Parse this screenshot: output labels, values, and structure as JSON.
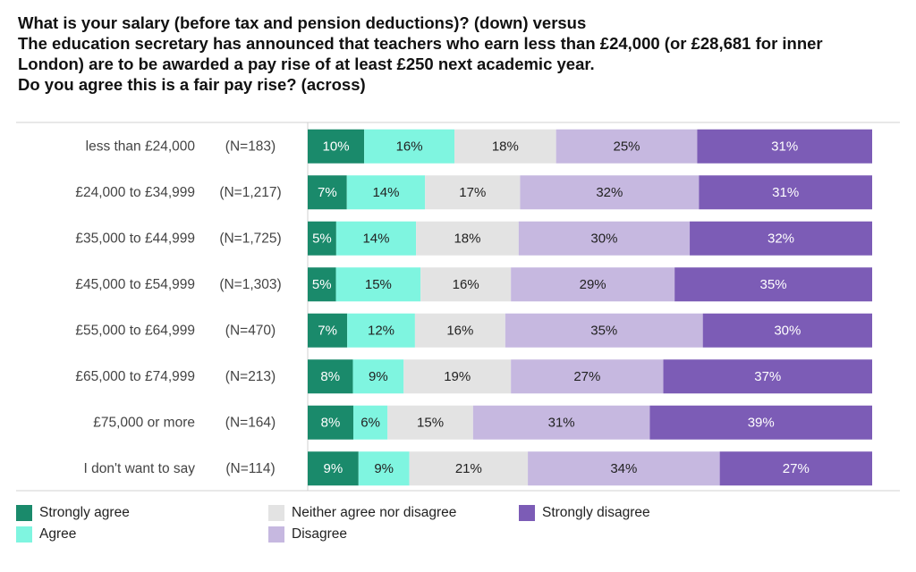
{
  "chart_data": {
    "type": "stacked-bar-horizontal",
    "title_lines": [
      "What is your salary (before tax and pension deductions)? (down) versus",
      "The education secretary has announced that teachers who earn less than £24,000 (or £28,681 for inner",
      "London) are to be awarded a pay rise of at least £250 next academic year.",
      "Do you agree this is a fair pay rise? (across)"
    ],
    "categories": [
      "less than £24,000",
      "£24,000 to £34,999",
      "£35,000 to £44,999",
      "£45,000 to £54,999",
      "£55,000 to £64,999",
      "£65,000 to £74,999",
      "£75,000 or more",
      "I don't want to say"
    ],
    "sample_sizes": [
      "(N=183)",
      "(N=1,217)",
      "(N=1,725)",
      "(N=1,303)",
      "(N=470)",
      "(N=213)",
      "(N=164)",
      "(N=114)"
    ],
    "series": [
      {
        "name": "Strongly agree",
        "color": "#1a8a6b",
        "text_color": "#ffffff",
        "values": [
          10,
          7,
          5,
          5,
          7,
          8,
          8,
          9
        ]
      },
      {
        "name": "Agree",
        "color": "#7ff5e0",
        "text_color": "#222222",
        "values": [
          16,
          14,
          14,
          15,
          12,
          9,
          6,
          9
        ]
      },
      {
        "name": "Neither agree nor disagree",
        "color": "#e3e3e3",
        "text_color": "#222222",
        "values": [
          18,
          17,
          18,
          16,
          16,
          19,
          15,
          21
        ]
      },
      {
        "name": "Disagree",
        "color": "#c6b8e0",
        "text_color": "#222222",
        "values": [
          25,
          32,
          30,
          29,
          35,
          27,
          31,
          34
        ]
      },
      {
        "name": "Strongly disagree",
        "color": "#7c5cb6",
        "text_color": "#ffffff",
        "values": [
          31,
          31,
          32,
          35,
          30,
          37,
          39,
          27
        ]
      }
    ],
    "value_suffix": "%",
    "xlim": [
      0,
      100
    ],
    "legend_position": "bottom"
  }
}
